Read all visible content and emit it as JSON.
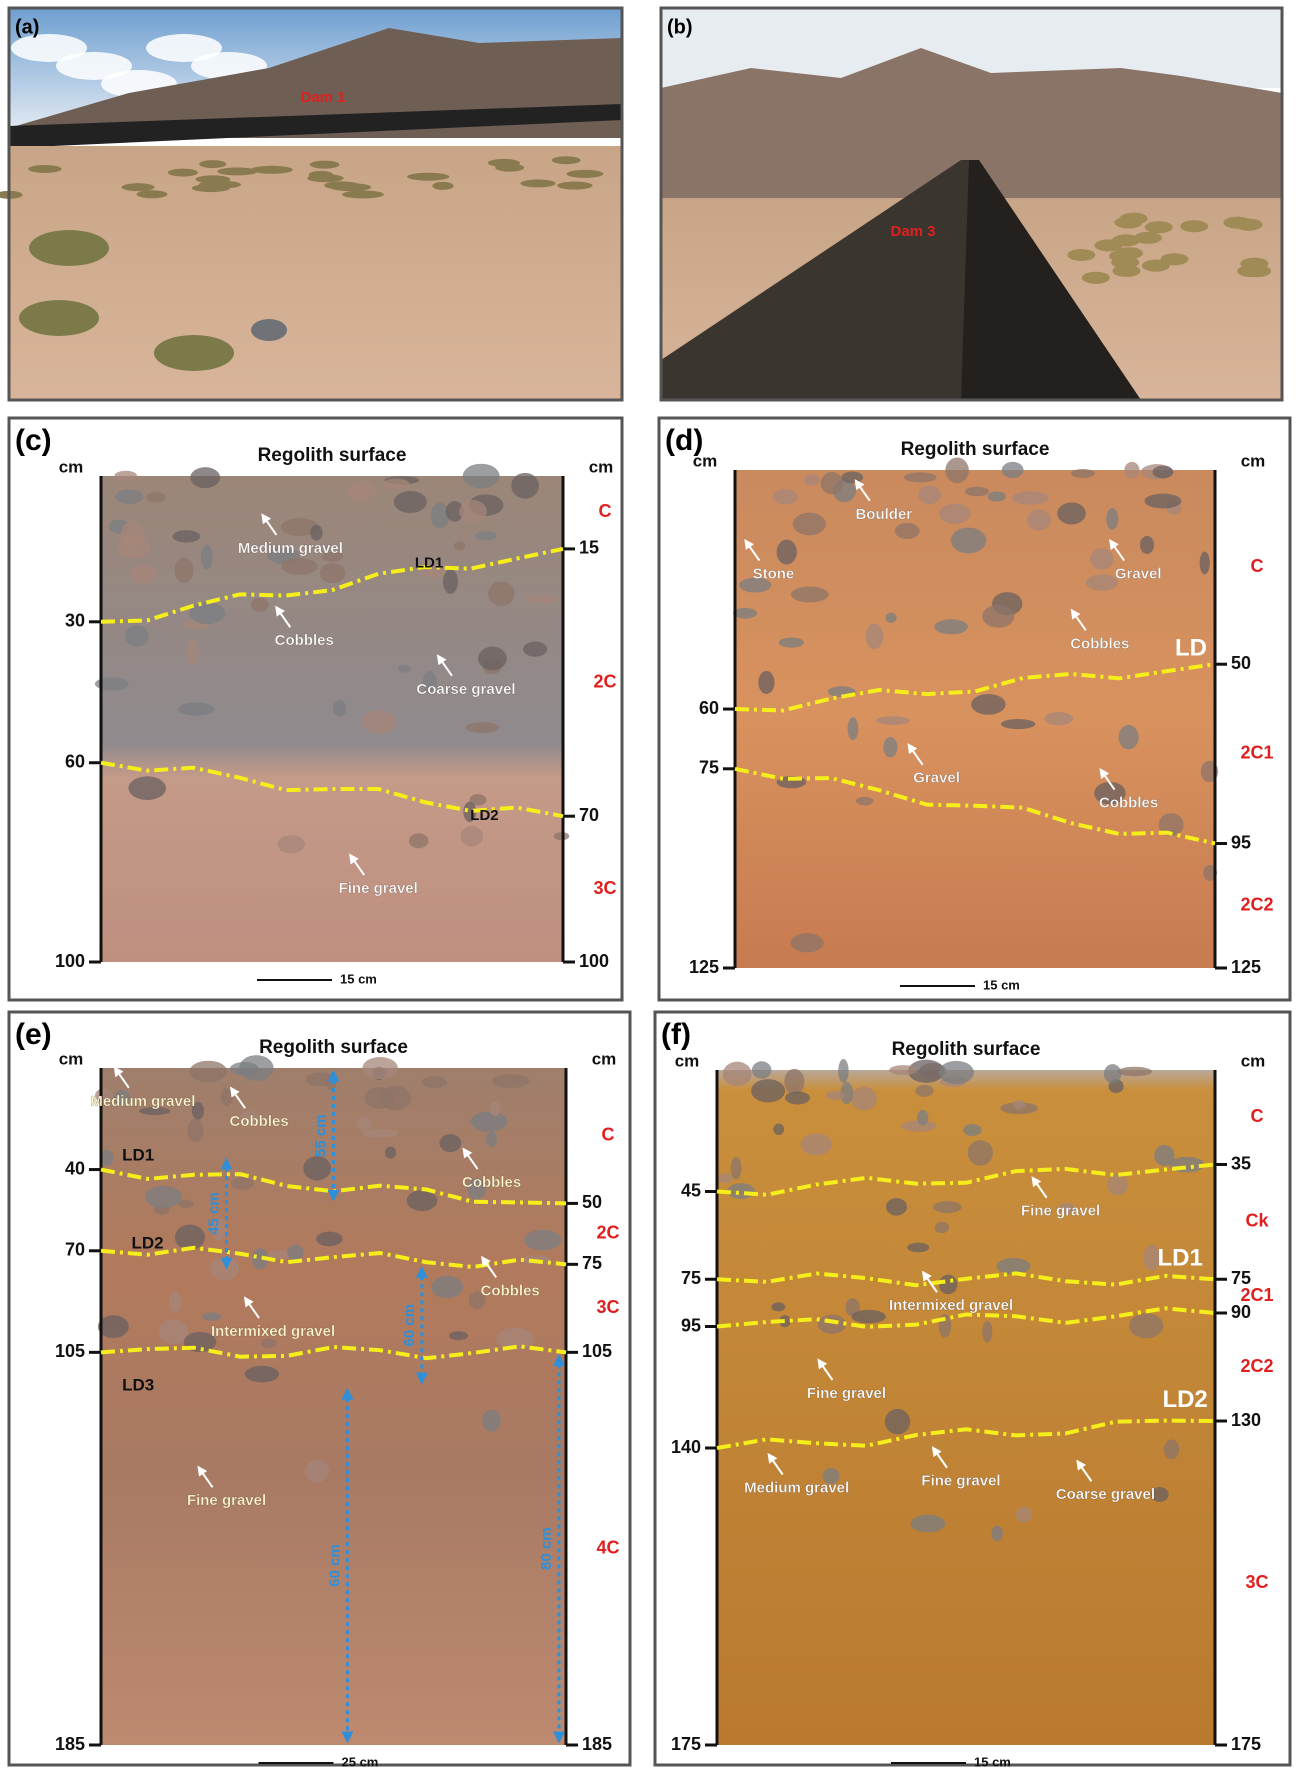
{
  "panels": [
    {
      "label": "(a)",
      "annotations": [
        "Dam 1"
      ]
    },
    {
      "label": "(b)",
      "annotations": [
        "Dam 3"
      ]
    },
    {
      "label": "(c)",
      "title": "Regolith surface",
      "left_unit": "cm",
      "right_unit": "cm",
      "left_ticks": [
        30,
        60,
        100
      ],
      "right_ticks": [
        15,
        70,
        100
      ],
      "horizons": [
        "C",
        "2C",
        "3C"
      ],
      "boundary_labels": [
        "LD1",
        "LD2"
      ],
      "notes": [
        "Medium gravel",
        "Cobbles",
        "Coarse gravel",
        "Fine gravel"
      ],
      "scale_bar": "15 cm"
    },
    {
      "label": "(d)",
      "title": "Regolith surface",
      "left_unit": "cm",
      "right_unit": "cm",
      "left_ticks": [
        60,
        75,
        125
      ],
      "right_ticks": [
        50,
        95,
        125
      ],
      "horizons": [
        "C",
        "2C1",
        "2C2"
      ],
      "boundary_labels": [
        "LD"
      ],
      "notes": [
        "Boulder",
        "Stone",
        "Gravel",
        "Cobbles",
        "Gravel",
        "Cobbles"
      ],
      "scale_bar": "15 cm"
    },
    {
      "label": "(e)",
      "title": "Regolith surface",
      "left_unit": "cm",
      "right_unit": "cm",
      "left_ticks": [
        40,
        70,
        105,
        185
      ],
      "right_ticks": [
        50,
        75,
        105,
        185
      ],
      "horizons": [
        "C",
        "2C",
        "3C",
        "4C"
      ],
      "boundary_labels": [
        "LD1",
        "LD2",
        "LD3"
      ],
      "notes": [
        "Medium gravel",
        "Cobbles",
        "Cobbles",
        "Cobbles",
        "Intermixed gravel",
        "Fine gravel"
      ],
      "measurements": [
        "55 cm",
        "45 cm",
        "60 cm",
        "60 cm",
        "80 cm"
      ],
      "scale_bar": "25 cm"
    },
    {
      "label": "(f)",
      "title": "Regolith surface",
      "left_unit": "cm",
      "right_unit": "cm",
      "left_ticks": [
        45,
        75,
        95,
        140,
        175
      ],
      "right_ticks": [
        35,
        75,
        90,
        130,
        175
      ],
      "horizons": [
        "C",
        "Ck",
        "2C1",
        "2C2",
        "3C"
      ],
      "boundary_labels": [
        "LD1",
        "LD2"
      ],
      "notes": [
        "Fine gravel",
        "Intermixed gravel",
        "Fine gravel",
        "Medium gravel",
        "Fine gravel",
        "Coarse gravel"
      ],
      "scale_bar": "15 cm"
    }
  ]
}
